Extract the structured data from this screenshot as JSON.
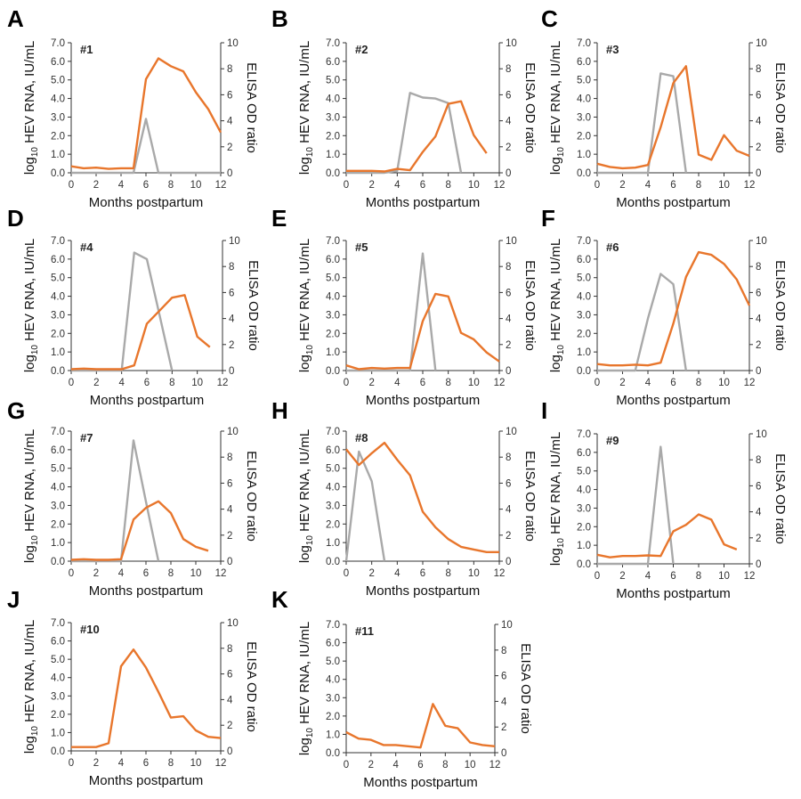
{
  "chart_data": [
    {
      "type": "line",
      "panel": "A",
      "label": "#1",
      "xlabel": "Months postpartum",
      "ylabel": "log10 HEV RNA, IU/mL",
      "y2label": "ELISA OD ratio",
      "xlim": [
        0,
        12
      ],
      "ylim": [
        0,
        7
      ],
      "y2lim": [
        0,
        10
      ],
      "xticks": [
        "0",
        "2",
        "4",
        "6",
        "8",
        "10",
        "12"
      ],
      "yticks": [
        "0.0",
        "1.0",
        "2.0",
        "3.0",
        "4.0",
        "5.0",
        "6.0",
        "7.0"
      ],
      "y2ticks": [
        "0",
        "2",
        "4",
        "6",
        "8",
        "10"
      ],
      "series": [
        {
          "axis": "left",
          "color": "#A9A9A9",
          "x": [
            0,
            1,
            2,
            3,
            4,
            5,
            6,
            7,
            8,
            9,
            10,
            11,
            12
          ],
          "y": [
            0,
            0,
            0,
            0,
            0,
            0,
            2.9,
            0,
            0,
            0,
            0,
            0,
            0
          ]
        },
        {
          "axis": "right",
          "color": "#E8762C",
          "x": [
            0,
            1,
            2,
            3,
            4,
            5,
            6,
            7,
            8,
            9,
            10,
            11,
            12
          ],
          "y": [
            0.5,
            0.35,
            0.4,
            0.3,
            0.35,
            0.35,
            7.2,
            8.8,
            8.2,
            7.8,
            6.2,
            4.9,
            3.1
          ]
        }
      ]
    },
    {
      "type": "line",
      "panel": "B",
      "label": "#2",
      "xlabel": "Months postpartum",
      "ylabel": "log10 HEV RNA, IU/mL",
      "y2label": "ELISA OD ratio",
      "xlim": [
        0,
        12
      ],
      "ylim": [
        0,
        7
      ],
      "y2lim": [
        0,
        10
      ],
      "xticks": [
        "0",
        "2",
        "4",
        "6",
        "8",
        "10",
        "12"
      ],
      "yticks": [
        "0.0",
        "1.0",
        "2.0",
        "3.0",
        "4.0",
        "5.0",
        "6.0",
        "7.0"
      ],
      "y2ticks": [
        "0",
        "2",
        "4",
        "6",
        "8",
        "10"
      ],
      "series": [
        {
          "axis": "left",
          "color": "#A9A9A9",
          "x": [
            0,
            1,
            2,
            3,
            4,
            5,
            6,
            7,
            8,
            9
          ],
          "y": [
            0,
            0,
            0,
            0,
            0.1,
            4.3,
            4.05,
            4.0,
            3.75,
            0
          ]
        },
        {
          "axis": "right",
          "color": "#E8762C",
          "x": [
            0,
            1,
            2,
            3,
            4,
            5,
            6,
            7,
            8,
            9,
            10,
            11
          ],
          "y": [
            0.15,
            0.15,
            0.15,
            0.1,
            0.3,
            0.2,
            1.6,
            2.8,
            5.3,
            5.5,
            2.9,
            1.5
          ]
        }
      ]
    },
    {
      "type": "line",
      "panel": "C",
      "label": "#3",
      "xlabel": "Months postpartum",
      "ylabel": "log10 HEV RNA, IU/mL",
      "y2label": "ELISA OD ratio",
      "xlim": [
        0,
        12
      ],
      "ylim": [
        0,
        7
      ],
      "y2lim": [
        0,
        10
      ],
      "xticks": [
        "0",
        "2",
        "4",
        "6",
        "8",
        "10",
        "12"
      ],
      "yticks": [
        "0.0",
        "1.0",
        "2.0",
        "3.0",
        "4.0",
        "5.0",
        "6.0",
        "7.0"
      ],
      "y2ticks": [
        "0",
        "2",
        "4",
        "6",
        "8",
        "10"
      ],
      "series": [
        {
          "axis": "left",
          "color": "#A9A9A9",
          "x": [
            0,
            1,
            2,
            3,
            4,
            5,
            6,
            7
          ],
          "y": [
            0,
            0,
            0,
            0,
            0,
            5.35,
            5.2,
            0
          ]
        },
        {
          "axis": "right",
          "color": "#E8762C",
          "x": [
            0,
            1,
            2,
            3,
            4,
            5,
            6,
            7,
            8,
            9,
            10,
            11,
            12
          ],
          "y": [
            0.7,
            0.45,
            0.35,
            0.4,
            0.6,
            3.5,
            6.9,
            8.2,
            1.4,
            1.0,
            2.9,
            1.7,
            1.3
          ]
        }
      ]
    },
    {
      "type": "line",
      "panel": "D",
      "label": "#4",
      "xlabel": "Months postpartum",
      "ylabel": "log10 HEV RNA, IU/mL",
      "y2label": "ELISA OD ratio",
      "xlim": [
        0,
        12
      ],
      "ylim": [
        0,
        7
      ],
      "y2lim": [
        0,
        10
      ],
      "xticks": [
        "0",
        "2",
        "4",
        "6",
        "8",
        "10",
        "12"
      ],
      "yticks": [
        "0.0",
        "1.0",
        "2.0",
        "3.0",
        "4.0",
        "5.0",
        "6.0",
        "7.0"
      ],
      "y2ticks": [
        "0",
        "2",
        "4",
        "6",
        "8",
        "10"
      ],
      "series": [
        {
          "axis": "left",
          "color": "#A9A9A9",
          "x": [
            0,
            1,
            2,
            3,
            4,
            5,
            6,
            7,
            8
          ],
          "y": [
            0,
            0,
            0,
            0,
            0,
            6.35,
            6.0,
            3.0,
            0
          ]
        },
        {
          "axis": "right",
          "color": "#E8762C",
          "x": [
            0,
            1,
            2,
            3,
            4,
            5,
            6,
            7,
            8,
            9,
            10,
            11
          ],
          "y": [
            0.1,
            0.15,
            0.1,
            0.1,
            0.1,
            0.4,
            3.6,
            4.6,
            5.6,
            5.8,
            2.6,
            1.8
          ]
        }
      ]
    },
    {
      "type": "line",
      "panel": "E",
      "label": "#5",
      "xlabel": "Months postpartum",
      "ylabel": "log10 HEV RNA, IU/mL",
      "y2label": "ELISA OD ratio",
      "xlim": [
        0,
        12
      ],
      "ylim": [
        0,
        7
      ],
      "y2lim": [
        0,
        10
      ],
      "xticks": [
        "0",
        "2",
        "4",
        "6",
        "8",
        "10",
        "12"
      ],
      "yticks": [
        "0.0",
        "1.0",
        "2.0",
        "3.0",
        "4.0",
        "5.0",
        "6.0",
        "7.0"
      ],
      "y2ticks": [
        "0",
        "2",
        "4",
        "6",
        "8",
        "10"
      ],
      "series": [
        {
          "axis": "left",
          "color": "#A9A9A9",
          "x": [
            0,
            1,
            2,
            3,
            4,
            5,
            6,
            7
          ],
          "y": [
            0,
            0,
            0,
            0,
            0,
            0,
            6.3,
            0
          ]
        },
        {
          "axis": "right",
          "color": "#E8762C",
          "x": [
            0,
            1,
            2,
            3,
            4,
            5,
            6,
            7,
            8,
            9,
            10,
            11,
            12
          ],
          "y": [
            0.4,
            0.1,
            0.2,
            0.15,
            0.2,
            0.2,
            3.8,
            5.9,
            5.7,
            2.9,
            2.4,
            1.4,
            0.7
          ]
        }
      ]
    },
    {
      "type": "line",
      "panel": "F",
      "label": "#6",
      "xlabel": "Months postpartum",
      "ylabel": "log10 HEV RNA, IU/mL",
      "y2label": "ELISA OD ratio",
      "xlim": [
        0,
        12
      ],
      "ylim": [
        0,
        7
      ],
      "y2lim": [
        0,
        10
      ],
      "xticks": [
        "0",
        "2",
        "4",
        "6",
        "8",
        "10",
        "12"
      ],
      "yticks": [
        "0.0",
        "1.0",
        "2.0",
        "3.0",
        "4.0",
        "5.0",
        "6.0",
        "7.0"
      ],
      "y2ticks": [
        "0",
        "2",
        "4",
        "6",
        "8",
        "10"
      ],
      "series": [
        {
          "axis": "left",
          "color": "#A9A9A9",
          "x": [
            0,
            1,
            2,
            3,
            4,
            5,
            6,
            7
          ],
          "y": [
            0,
            0,
            0,
            0,
            2.8,
            5.2,
            4.65,
            0
          ]
        },
        {
          "axis": "right",
          "color": "#E8762C",
          "x": [
            0,
            1,
            2,
            3,
            4,
            5,
            6,
            7,
            8,
            9,
            10,
            11,
            12
          ],
          "y": [
            0.5,
            0.4,
            0.4,
            0.45,
            0.4,
            0.6,
            3.6,
            7.2,
            9.1,
            8.9,
            8.2,
            7.0,
            5.0
          ]
        }
      ]
    },
    {
      "type": "line",
      "panel": "G",
      "label": "#7",
      "xlabel": "Months postpartum",
      "ylabel": "log10 HEV RNA, IU/mL",
      "y2label": "ELISA OD ratio",
      "xlim": [
        0,
        12
      ],
      "ylim": [
        0,
        7
      ],
      "y2lim": [
        0,
        10
      ],
      "xticks": [
        "0",
        "2",
        "4",
        "6",
        "8",
        "10",
        "12"
      ],
      "yticks": [
        "0.0",
        "1.0",
        "2.0",
        "3.0",
        "4.0",
        "5.0",
        "6.0",
        "7.0"
      ],
      "y2ticks": [
        "0",
        "2",
        "4",
        "6",
        "8",
        "10"
      ],
      "series": [
        {
          "axis": "left",
          "color": "#A9A9A9",
          "x": [
            0,
            1,
            2,
            3,
            4,
            5,
            6,
            7
          ],
          "y": [
            0,
            0,
            0,
            0,
            0,
            6.5,
            3.2,
            0
          ]
        },
        {
          "axis": "right",
          "color": "#E8762C",
          "x": [
            0,
            1,
            2,
            3,
            4,
            5,
            6,
            7,
            8,
            9,
            10,
            11
          ],
          "y": [
            0.1,
            0.15,
            0.1,
            0.1,
            0.15,
            3.2,
            4.1,
            4.6,
            3.7,
            1.7,
            1.1,
            0.8
          ]
        }
      ]
    },
    {
      "type": "line",
      "panel": "H",
      "label": "#8",
      "xlabel": "Months postpartum",
      "ylabel": "log10 HEV RNA, IU/mL",
      "y2label": "ELISA OD ratio",
      "xlim": [
        0,
        12
      ],
      "ylim": [
        0,
        7
      ],
      "y2lim": [
        0,
        10
      ],
      "xticks": [
        "0",
        "2",
        "4",
        "6",
        "8",
        "10",
        "12"
      ],
      "yticks": [
        "0.0",
        "1.0",
        "2.0",
        "3.0",
        "4.0",
        "5.0",
        "6.0",
        "7.0"
      ],
      "y2ticks": [
        "0",
        "2",
        "4",
        "6",
        "8",
        "10"
      ],
      "series": [
        {
          "axis": "left",
          "color": "#A9A9A9",
          "x": [
            0,
            1,
            2,
            3
          ],
          "y": [
            0,
            5.9,
            4.3,
            0
          ]
        },
        {
          "axis": "right",
          "color": "#E8762C",
          "x": [
            0,
            1,
            2,
            3,
            4,
            5,
            6,
            7,
            8,
            9,
            10,
            11,
            12
          ],
          "y": [
            8.6,
            7.4,
            8.3,
            9.1,
            7.8,
            6.6,
            3.8,
            2.6,
            1.7,
            1.1,
            0.9,
            0.7,
            0.7
          ]
        }
      ]
    },
    {
      "type": "line",
      "panel": "I",
      "label": "#9",
      "xlabel": "Months postpartum",
      "ylabel": "log10 HEV RNA, IU/mL",
      "y2label": "ELISA OD ratio",
      "xlim": [
        0,
        12
      ],
      "ylim": [
        0,
        7
      ],
      "y2lim": [
        0,
        10
      ],
      "xticks": [
        "0",
        "2",
        "4",
        "6",
        "8",
        "10",
        "12"
      ],
      "yticks": [
        "0.0",
        "1.0",
        "2.0",
        "3.0",
        "4.0",
        "5.0",
        "6.0",
        "7.0"
      ],
      "y2ticks": [
        "0",
        "2",
        "4",
        "6",
        "8",
        "10"
      ],
      "series": [
        {
          "axis": "left",
          "color": "#A9A9A9",
          "x": [
            0,
            1,
            2,
            3,
            4,
            5,
            6
          ],
          "y": [
            0,
            0,
            0,
            0,
            0,
            6.3,
            0
          ]
        },
        {
          "axis": "right",
          "color": "#E8762C",
          "x": [
            0,
            1,
            2,
            3,
            4,
            5,
            6,
            7,
            8,
            9,
            10,
            11
          ],
          "y": [
            0.7,
            0.5,
            0.6,
            0.6,
            0.65,
            0.6,
            2.5,
            3.0,
            3.8,
            3.4,
            1.5,
            1.1
          ]
        }
      ]
    },
    {
      "type": "line",
      "panel": "J",
      "label": "#10",
      "xlabel": "Months postpartum",
      "ylabel": "log10 HEV RNA, IU/mL",
      "y2label": "ELISA OD ratio",
      "xlim": [
        0,
        12
      ],
      "ylim": [
        0,
        7
      ],
      "y2lim": [
        0,
        10
      ],
      "xticks": [
        "0",
        "2",
        "4",
        "6",
        "8",
        "10",
        "12"
      ],
      "yticks": [
        "0.0",
        "1.0",
        "2.0",
        "3.0",
        "4.0",
        "5.0",
        "6.0",
        "7.0"
      ],
      "y2ticks": [
        "0",
        "2",
        "4",
        "6",
        "8",
        "10"
      ],
      "series": [
        {
          "axis": "right",
          "color": "#E8762C",
          "x": [
            0,
            1,
            2,
            3,
            4,
            5,
            6,
            7,
            8,
            9,
            10,
            11,
            12
          ],
          "y": [
            0.3,
            0.3,
            0.3,
            0.6,
            6.6,
            7.9,
            6.5,
            4.6,
            2.6,
            2.7,
            1.6,
            1.1,
            1.0
          ]
        }
      ]
    },
    {
      "type": "line",
      "panel": "K",
      "label": "#11",
      "xlabel": "Months postpartum",
      "ylabel": "log10 HEV RNA, IU/mL",
      "y2label": "ELISA OD ratio",
      "xlim": [
        0,
        12
      ],
      "ylim": [
        0,
        7
      ],
      "y2lim": [
        0,
        10
      ],
      "xticks": [
        "0",
        "2",
        "4",
        "6",
        "8",
        "10",
        "12"
      ],
      "yticks": [
        "0.0",
        "1.0",
        "2.0",
        "3.0",
        "4.0",
        "5.0",
        "6.0",
        "7.0"
      ],
      "y2ticks": [
        "0",
        "2",
        "4",
        "6",
        "8",
        "10"
      ],
      "series": [
        {
          "axis": "right",
          "color": "#E8762C",
          "x": [
            0,
            1,
            2,
            3,
            4,
            5,
            6,
            7,
            8,
            9,
            10,
            11,
            12
          ],
          "y": [
            1.6,
            1.1,
            1.0,
            0.6,
            0.6,
            0.5,
            0.4,
            3.8,
            2.1,
            1.9,
            0.8,
            0.6,
            0.5
          ]
        }
      ]
    }
  ]
}
